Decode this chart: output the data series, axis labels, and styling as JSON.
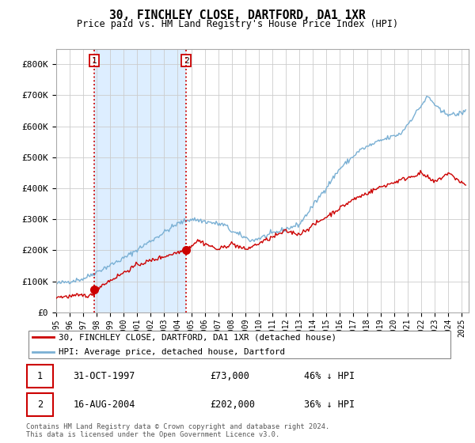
{
  "title": "30, FINCHLEY CLOSE, DARTFORD, DA1 1XR",
  "subtitle": "Price paid vs. HM Land Registry's House Price Index (HPI)",
  "sale1_price": 73000,
  "sale1_date_str": "31-OCT-1997",
  "sale1_pct": "46% ↓ HPI",
  "sale2_price": 202000,
  "sale2_date_str": "16-AUG-2004",
  "sale2_pct": "36% ↓ HPI",
  "red_line_color": "#cc0000",
  "blue_line_color": "#7ab0d4",
  "shade_color": "#ddeeff",
  "marker_color": "#cc0000",
  "vline_color": "#cc0000",
  "grid_color": "#cccccc",
  "background_color": "#ffffff",
  "legend_label_red": "30, FINCHLEY CLOSE, DARTFORD, DA1 1XR (detached house)",
  "legend_label_blue": "HPI: Average price, detached house, Dartford",
  "footer": "Contains HM Land Registry data © Crown copyright and database right 2024.\nThis data is licensed under the Open Government Licence v3.0.",
  "ylim": [
    0,
    850000
  ],
  "yticks": [
    0,
    100000,
    200000,
    300000,
    400000,
    500000,
    600000,
    700000,
    800000
  ],
  "ytick_labels": [
    "£0",
    "£100K",
    "£200K",
    "£300K",
    "£400K",
    "£500K",
    "£600K",
    "£700K",
    "£800K"
  ],
  "sale1_x": 1997.83,
  "sale2_x": 2004.62,
  "xlim_left": 1995.0,
  "xlim_right": 2025.5
}
